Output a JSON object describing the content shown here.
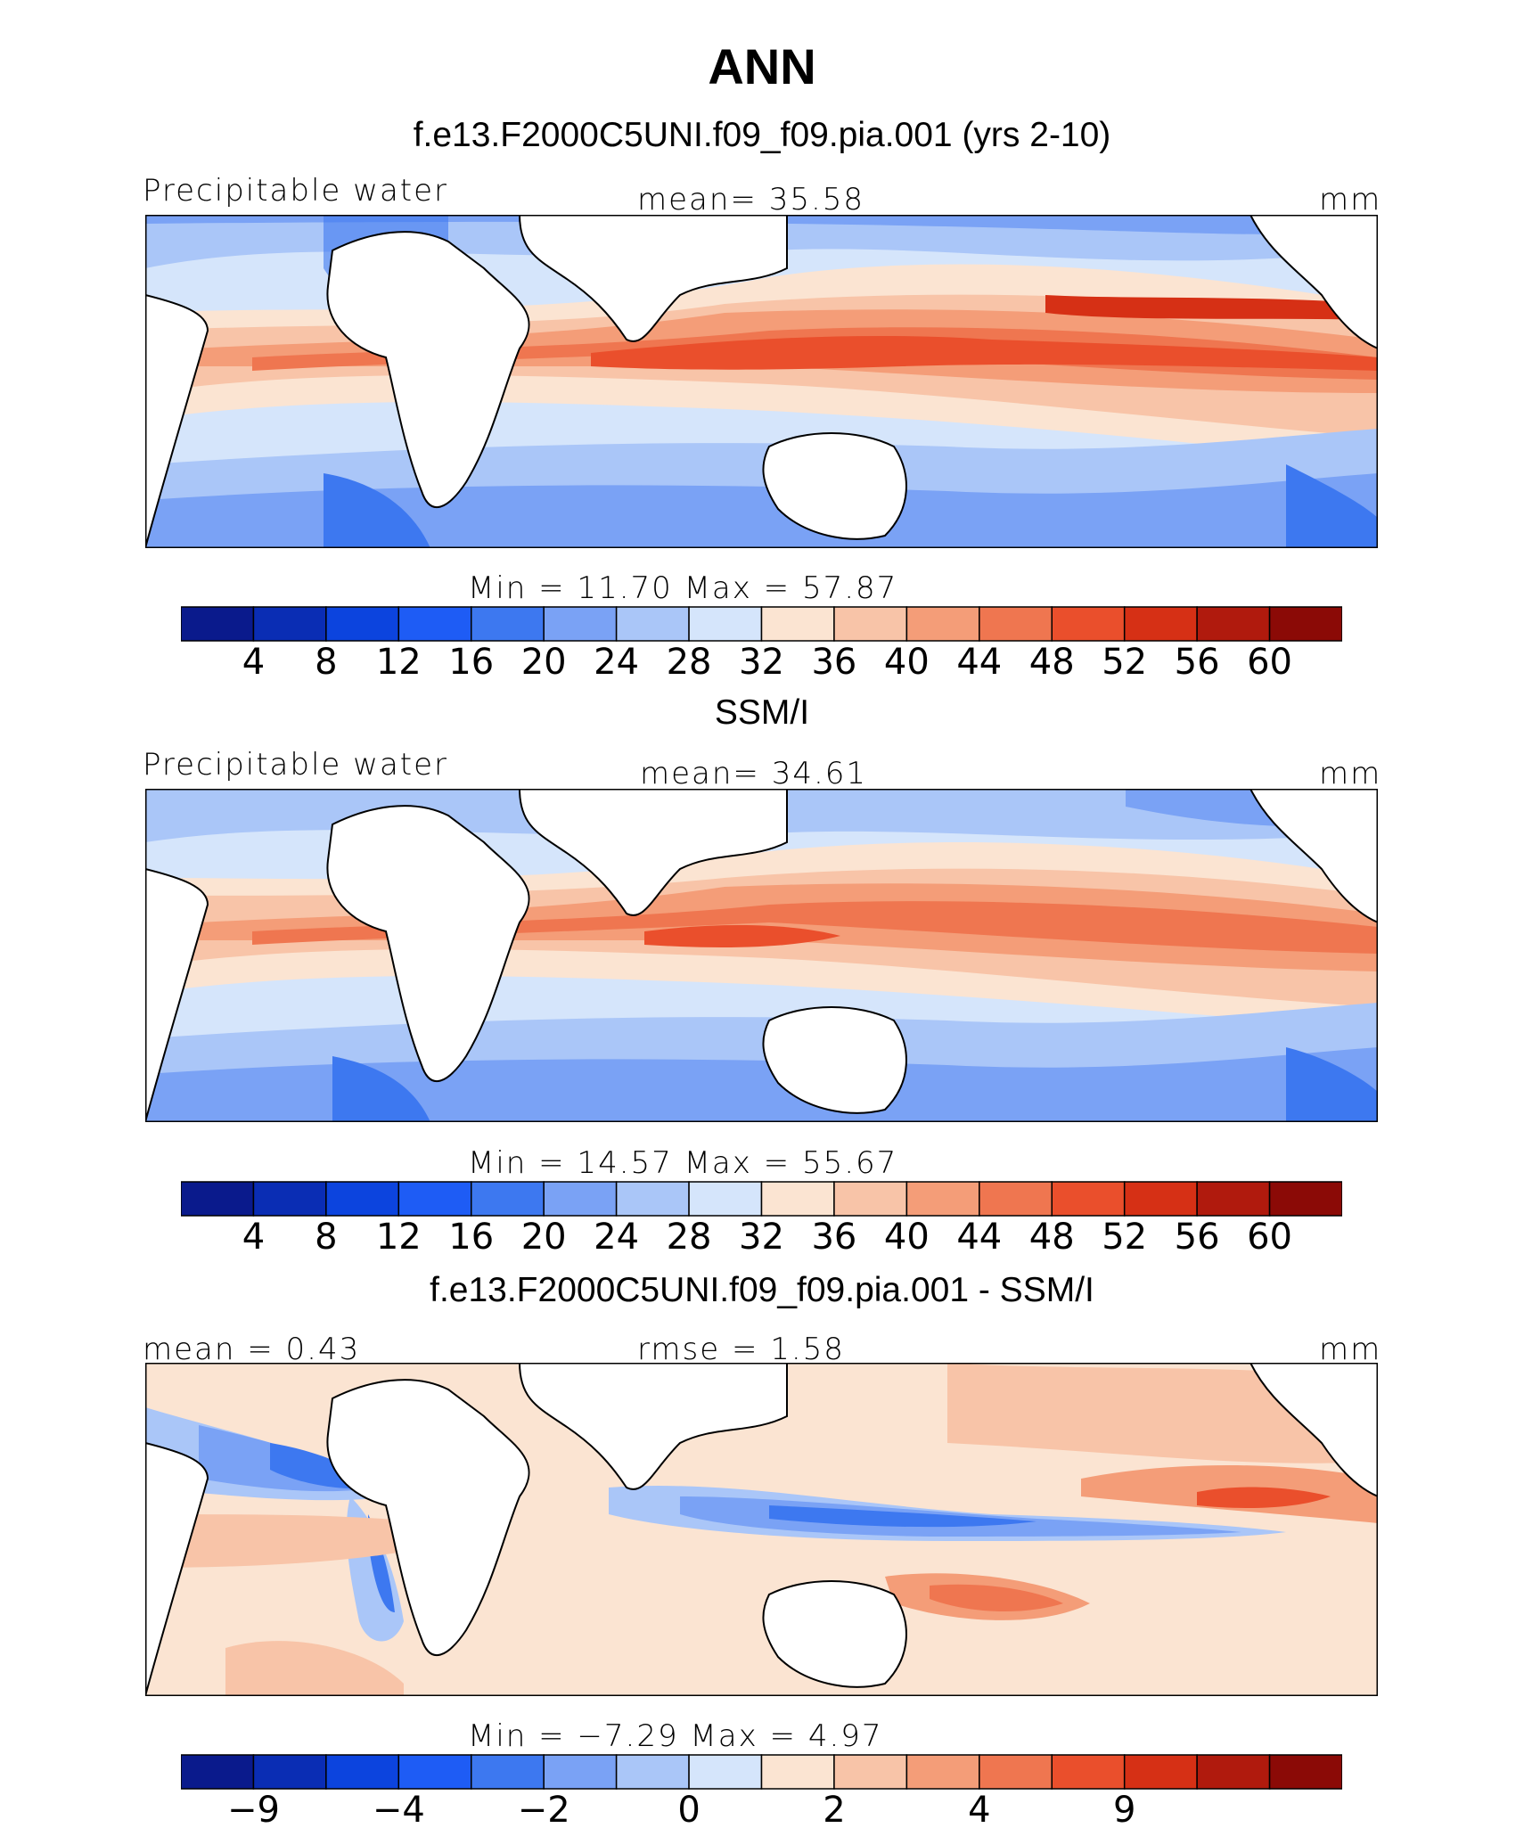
{
  "page_title": "ANN",
  "colors": {
    "palette": [
      "#0a1a8c",
      "#0a2db4",
      "#0c44de",
      "#1e5cf5",
      "#3d78f0",
      "#7aa2f5",
      "#aac6f8",
      "#d5e5fb",
      "#fbe4d2",
      "#f8c4a8",
      "#f49d78",
      "#ef7650",
      "#ea4f2c",
      "#d63015",
      "#b01a0d",
      "#8b0a06"
    ],
    "continent": "#ffffff",
    "coast": "#000000"
  },
  "panels": [
    {
      "subtitle": "f.e13.F2000C5UNI.f09_f09.pia.001 (yrs 2-10)",
      "left_label": "Precipitable water",
      "center_label": "mean=  35.58",
      "right_label": "mm",
      "minmax": "Min =   11.70 Max =   57.87",
      "colorbar_ticks": [
        "4",
        "8",
        "12",
        "16",
        "20",
        "24",
        "28",
        "32",
        "36",
        "40",
        "44",
        "48",
        "52",
        "56",
        "60"
      ]
    },
    {
      "subtitle": "SSM/I",
      "left_label": "Precipitable water",
      "center_label": "mean=  34.61",
      "right_label": "mm",
      "minmax": "Min =   14.57 Max =   55.67",
      "colorbar_ticks": [
        "4",
        "8",
        "12",
        "16",
        "20",
        "24",
        "28",
        "32",
        "36",
        "40",
        "44",
        "48",
        "52",
        "56",
        "60"
      ]
    },
    {
      "subtitle": "f.e13.F2000C5UNI.f09_f09.pia.001 - SSM/I",
      "left_label": "mean =   0.43",
      "center_label": "rmse =   1.58",
      "right_label": "mm",
      "minmax": "Min =  −7.29 Max =    4.97",
      "colorbar_ticks": [
        "−9",
        "−4",
        "−2",
        "0",
        "2",
        "4",
        "9"
      ]
    }
  ],
  "chart_data": [
    {
      "type": "heatmap",
      "title": "f.e13.F2000C5UNI.f09_f09.pia.001 (yrs 2-10)",
      "variable": "Precipitable water",
      "units": "mm",
      "mean": 35.58,
      "min": 11.7,
      "max": 57.87,
      "levels": [
        4,
        8,
        12,
        16,
        20,
        24,
        28,
        32,
        36,
        40,
        44,
        48,
        52,
        56,
        60
      ]
    },
    {
      "type": "heatmap",
      "title": "SSM/I",
      "variable": "Precipitable water",
      "units": "mm",
      "mean": 34.61,
      "min": 14.57,
      "max": 55.67,
      "levels": [
        4,
        8,
        12,
        16,
        20,
        24,
        28,
        32,
        36,
        40,
        44,
        48,
        52,
        56,
        60
      ]
    },
    {
      "type": "heatmap",
      "title": "f.e13.F2000C5UNI.f09_f09.pia.001 - SSM/I",
      "units": "mm",
      "mean": 0.43,
      "rmse": 1.58,
      "min": -7.29,
      "max": 4.97,
      "levels": [
        -9,
        -4,
        -2,
        0,
        2,
        4,
        9
      ]
    }
  ]
}
